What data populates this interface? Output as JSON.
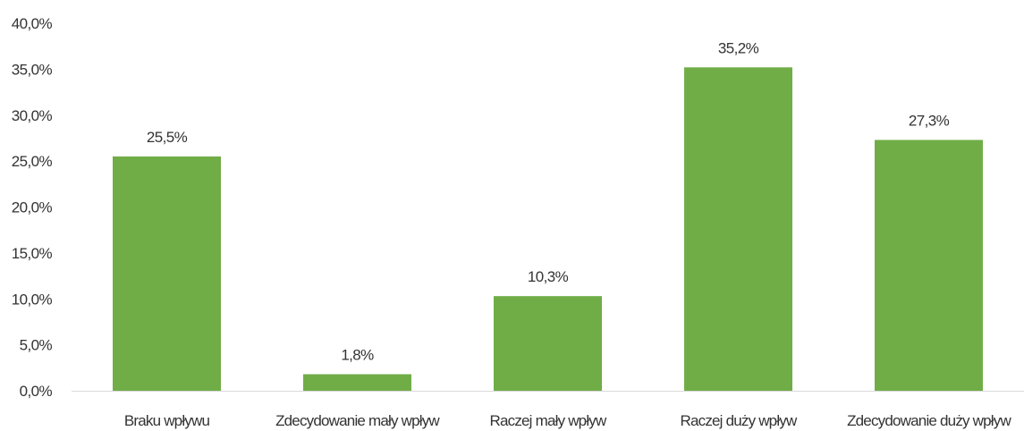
{
  "chart_data": {
    "type": "bar",
    "categories": [
      "Braku wpływu",
      "Zdecydowanie mały wpływ",
      "Raczej mały wpływ",
      "Raczej duży wpływ",
      "Zdecydowanie duży wpływ"
    ],
    "values": [
      25.5,
      1.8,
      10.3,
      35.2,
      27.3
    ],
    "value_labels": [
      "25,5%",
      "1,8%",
      "10,3%",
      "35,2%",
      "27,3%"
    ],
    "y_ticks": [
      "0,0%",
      "5,0%",
      "10,0%",
      "15,0%",
      "20,0%",
      "25,0%",
      "30,0%",
      "35,0%",
      "40,0%"
    ],
    "ylim": [
      0,
      40
    ],
    "grid": false,
    "legend": "none",
    "bar_color": "#70ad47",
    "title": "",
    "xlabel": "",
    "ylabel": ""
  }
}
